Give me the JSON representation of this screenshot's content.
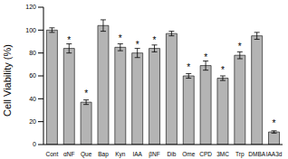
{
  "chart_data": {
    "type": "bar",
    "y_label": "Cell Viability (%)",
    "categories": [
      "Cont",
      "αNF",
      "Que",
      "Bap",
      "Kyn",
      "IAA",
      "βNF",
      "Dib",
      "Ome",
      "CPD",
      "3MC",
      "Trp",
      "DMBA",
      "IAA3d"
    ],
    "values": [
      100,
      84,
      37,
      104,
      85,
      80,
      84,
      97,
      60,
      69,
      58,
      78,
      95,
      11
    ],
    "errors": [
      2,
      4,
      2,
      5,
      3,
      4,
      3,
      2,
      2,
      4,
      2,
      3,
      3,
      1
    ],
    "annotations": [
      {
        "category": "αNF",
        "text": "*"
      },
      {
        "category": "Que",
        "text": "*"
      },
      {
        "category": "Kyn",
        "text": "*"
      },
      {
        "category": "IAA",
        "text": "*"
      },
      {
        "category": "βNF",
        "text": "*"
      },
      {
        "category": "Ome",
        "text": "*"
      },
      {
        "category": "CPD",
        "text": "*"
      },
      {
        "category": "3MC",
        "text": "*"
      },
      {
        "category": "Trp",
        "text": "*"
      },
      {
        "category": "IAA3d",
        "text": "*"
      }
    ],
    "color": "#b4b4b4",
    "ylim": [
      0,
      120
    ],
    "yticks": [
      0,
      20,
      40,
      60,
      80,
      100,
      120
    ],
    "grid": false
  }
}
